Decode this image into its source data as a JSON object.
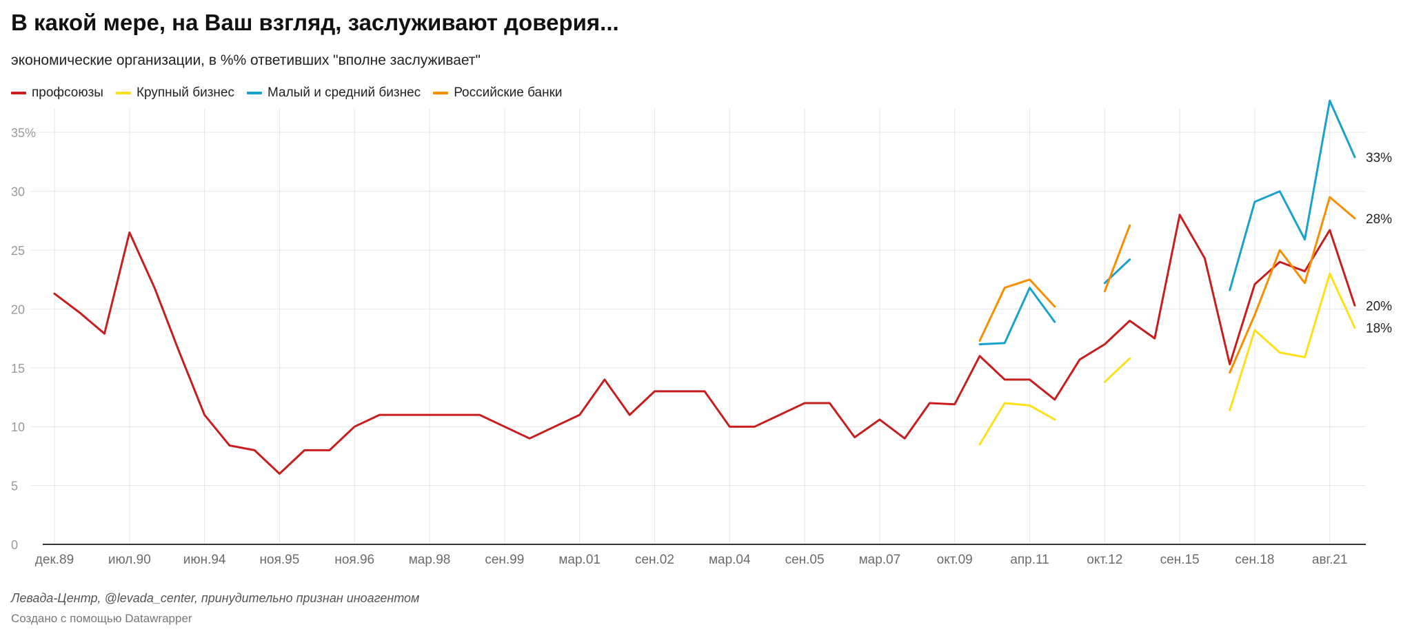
{
  "header": {
    "title": "В какой мере, на Ваш взгляд, заслуживают доверия...",
    "subtitle": "экономические организации, в %% ответивших \"вполне заслуживает\""
  },
  "footer": {
    "source": "Левада-Центр, @levada_center, принудительно признан иноагентом",
    "credit": "Создано с помощью Datawrapper"
  },
  "chart_data": {
    "type": "line",
    "title": "В какой мере, на Ваш взгляд, заслуживают доверия...",
    "subtitle": "экономические организации, в %% ответивших \"вполне заслуживает\"",
    "ylim": [
      0,
      37
    ],
    "y_ticks": [
      0,
      5,
      10,
      15,
      20,
      25,
      30,
      35
    ],
    "y_tick_labels": [
      "0",
      "5",
      "10",
      "15",
      "20",
      "25",
      "30",
      "35%"
    ],
    "x_ticks": [
      {
        "i": 0,
        "label": "дек.89"
      },
      {
        "i": 3,
        "label": "июл.90"
      },
      {
        "i": 6,
        "label": "июн.94"
      },
      {
        "i": 9,
        "label": "ноя.95"
      },
      {
        "i": 12,
        "label": "ноя.96"
      },
      {
        "i": 15,
        "label": "мар.98"
      },
      {
        "i": 18,
        "label": "сен.99"
      },
      {
        "i": 21,
        "label": "мар.01"
      },
      {
        "i": 24,
        "label": "сен.02"
      },
      {
        "i": 27,
        "label": "мар.04"
      },
      {
        "i": 30,
        "label": "сен.05"
      },
      {
        "i": 33,
        "label": "мар.07"
      },
      {
        "i": 36,
        "label": "окт.09"
      },
      {
        "i": 39,
        "label": "апр.11"
      },
      {
        "i": 42,
        "label": "окт.12"
      },
      {
        "i": 45,
        "label": "сен.15"
      },
      {
        "i": 48,
        "label": "сен.18"
      },
      {
        "i": 51,
        "label": "авг.21"
      }
    ],
    "grid": true,
    "legend_position": "top-left",
    "series": [
      {
        "name": "профсоюзы",
        "color": "#c71e1d",
        "end_label": "20%",
        "values": [
          21.3,
          19.7,
          17.9,
          26.5,
          21.8,
          16.3,
          11.0,
          8.4,
          8.0,
          6.0,
          8.0,
          8.0,
          10.0,
          11.0,
          11.0,
          11.0,
          11.0,
          11.0,
          10.0,
          9.0,
          10.0,
          11.0,
          14.0,
          11.0,
          13.0,
          13.0,
          13.0,
          10.0,
          10.0,
          11.0,
          12.0,
          12.0,
          9.1,
          10.6,
          9.0,
          12.0,
          11.9,
          16.0,
          14.0,
          14.0,
          12.3,
          15.7,
          17.0,
          19.0,
          17.5,
          28.0,
          24.3,
          15.3,
          22.1,
          24.0,
          23.2,
          26.7,
          20.3
        ]
      },
      {
        "name": "Крупный бизнес",
        "color": "#fde01a",
        "end_label": "18%",
        "values": [
          null,
          null,
          null,
          null,
          null,
          null,
          null,
          null,
          null,
          null,
          null,
          null,
          null,
          null,
          null,
          null,
          null,
          null,
          null,
          null,
          null,
          null,
          null,
          null,
          null,
          null,
          null,
          null,
          null,
          null,
          null,
          null,
          null,
          null,
          null,
          null,
          null,
          8.5,
          12.0,
          11.8,
          10.6,
          null,
          13.8,
          15.8,
          null,
          null,
          null,
          11.4,
          18.2,
          16.3,
          15.9,
          23.0,
          18.4
        ]
      },
      {
        "name": "Малый и средний бизнес",
        "color": "#18a1cd",
        "end_label": "33%",
        "values": [
          null,
          null,
          null,
          null,
          null,
          null,
          null,
          null,
          null,
          null,
          null,
          null,
          null,
          null,
          null,
          null,
          null,
          null,
          null,
          null,
          null,
          null,
          null,
          null,
          null,
          null,
          null,
          null,
          null,
          null,
          null,
          null,
          null,
          null,
          null,
          null,
          null,
          17.0,
          17.1,
          21.8,
          18.9,
          null,
          22.2,
          24.2,
          null,
          null,
          null,
          21.6,
          29.1,
          30.0,
          25.9,
          37.7,
          32.9
        ]
      },
      {
        "name": "Российские банки",
        "color": "#fa8c00",
        "end_label": "28%",
        "values": [
          null,
          null,
          null,
          null,
          null,
          null,
          null,
          null,
          null,
          null,
          null,
          null,
          null,
          null,
          null,
          null,
          null,
          null,
          null,
          null,
          null,
          null,
          null,
          null,
          null,
          null,
          null,
          null,
          null,
          null,
          null,
          null,
          null,
          null,
          null,
          null,
          null,
          17.3,
          21.8,
          22.5,
          20.2,
          null,
          21.5,
          27.1,
          null,
          null,
          null,
          14.6,
          19.5,
          25.0,
          22.2,
          29.5,
          27.7
        ]
      }
    ]
  }
}
